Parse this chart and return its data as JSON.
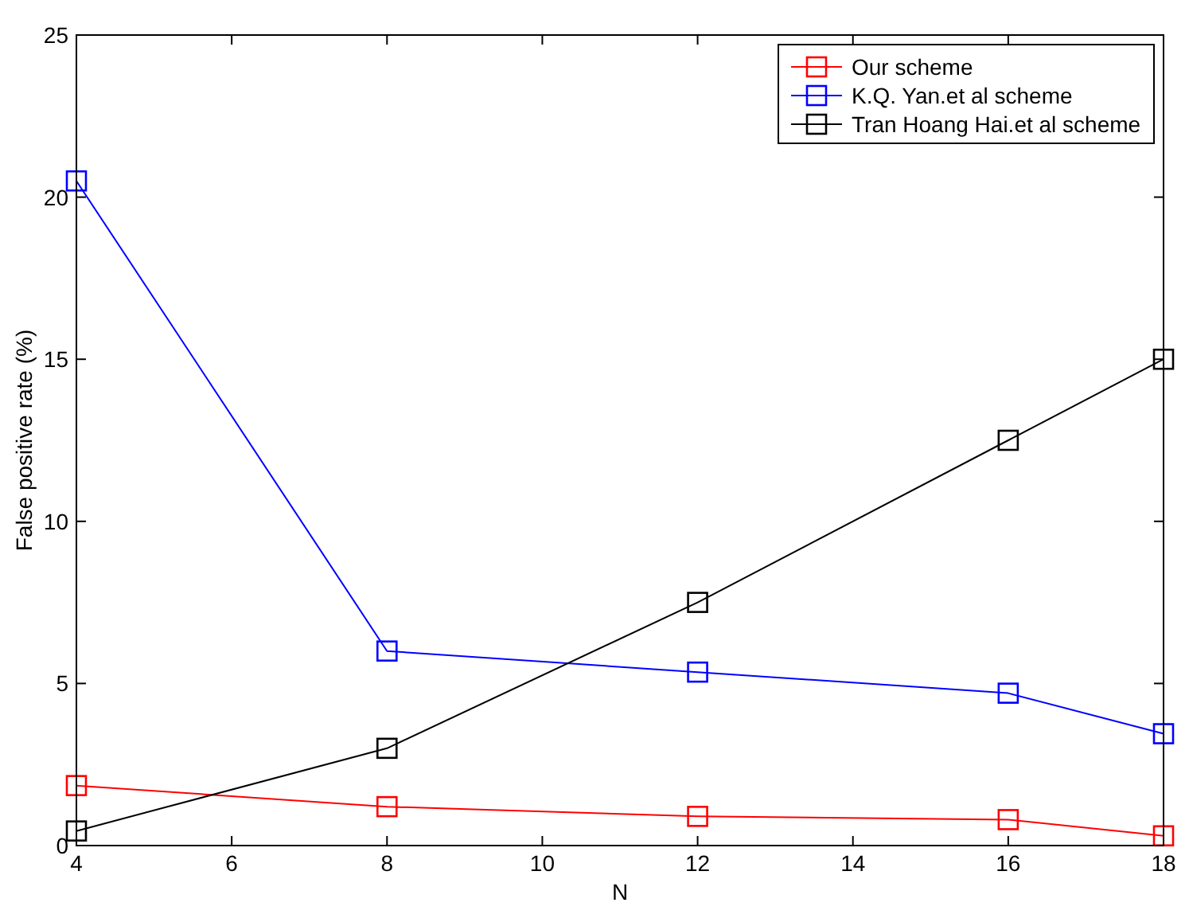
{
  "chart_data": {
    "type": "line",
    "xlabel": "N",
    "ylabel": "False positive rate (%)",
    "x": [
      4,
      8,
      12,
      16,
      18
    ],
    "series": [
      {
        "name": "Our scheme",
        "color": "#ff0000",
        "values": [
          1.85,
          1.2,
          0.9,
          0.8,
          0.3
        ]
      },
      {
        "name": "K.Q. Yan.et al scheme",
        "color": "#0000ff",
        "values": [
          20.5,
          6.0,
          5.35,
          4.7,
          3.45
        ]
      },
      {
        "name": "Tran Hoang Hai.et al scheme",
        "color": "#000000",
        "values": [
          0.45,
          3.0,
          7.5,
          12.5,
          15.0
        ]
      }
    ],
    "xlim": [
      4,
      18
    ],
    "xticks": [
      4,
      6,
      8,
      10,
      12,
      14,
      16,
      18
    ],
    "ylim": [
      0,
      25
    ],
    "yticks": [
      0,
      5,
      10,
      15,
      20,
      25
    ],
    "grid": false,
    "legend": "top right",
    "marker": "square",
    "line_style": "solid"
  }
}
